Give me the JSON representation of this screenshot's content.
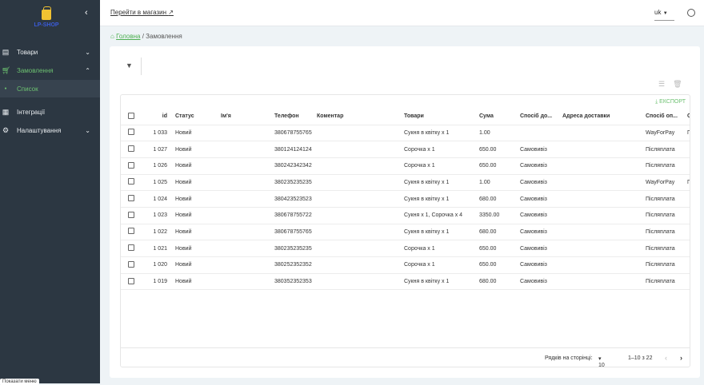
{
  "sidebar": {
    "logo": "LP-SHOP",
    "items": [
      {
        "label": "Товари",
        "icon": "archive-icon"
      },
      {
        "label": "Замовлення",
        "icon": "cart-icon"
      },
      {
        "label": "Список",
        "icon": "dot-icon"
      },
      {
        "label": "Інтеграції",
        "icon": "grid-icon"
      },
      {
        "label": "Налаштування",
        "icon": "gear-icon"
      }
    ],
    "tooltip": "Показати меню"
  },
  "header": {
    "shop_link": "Перейти в магазин",
    "lang": "uk"
  },
  "breadcrumb": {
    "home": "Головна",
    "current": "Замовлення"
  },
  "table": {
    "export": "ЕКСПОРТ",
    "columns": [
      "id",
      "Статус",
      "Ім'я",
      "Телефон",
      "Коментар",
      "Товари",
      "Сума",
      "Спосіб до...",
      "Адреса доставки",
      "Спосіб оп...",
      "С"
    ],
    "rows": [
      [
        "1 033",
        "Новий",
        "",
        "380678755765",
        "",
        "Сукня в квітку x 1",
        "1.00",
        "",
        "",
        "WayForPay",
        "П"
      ],
      [
        "1 027",
        "Новий",
        "",
        "380124124124",
        "",
        "Сорочка x 1",
        "650.00",
        "Самовивіз",
        "",
        "Післяплата",
        ""
      ],
      [
        "1 026",
        "Новий",
        "",
        "380242342342",
        "",
        "Сорочка x 1",
        "650.00",
        "Самовивіз",
        "",
        "Післяплата",
        ""
      ],
      [
        "1 025",
        "Новий",
        "",
        "380235235235",
        "",
        "Сукня в квітку x 1",
        "1.00",
        "Самовивіз",
        "",
        "WayForPay",
        "П"
      ],
      [
        "1 024",
        "Новий",
        "",
        "380423523523",
        "",
        "Сукня в квітку x 1",
        "680.00",
        "Самовивіз",
        "",
        "Післяплата",
        ""
      ],
      [
        "1 023",
        "Новий",
        "",
        "380678755722",
        "",
        "Сукня x 1, Сорочка x 4",
        "3350.00",
        "Самовивіз",
        "",
        "Післяплата",
        ""
      ],
      [
        "1 022",
        "Новий",
        "",
        "380678755765",
        "",
        "Сукня в квітку x 1",
        "680.00",
        "Самовивіз",
        "",
        "Післяплата",
        ""
      ],
      [
        "1 021",
        "Новий",
        "",
        "380235235235",
        "",
        "Сорочка x 1",
        "650.00",
        "Самовивіз",
        "",
        "Післяплата",
        ""
      ],
      [
        "1 020",
        "Новий",
        "",
        "380252352352",
        "",
        "Сорочка x 1",
        "650.00",
        "Самовивіз",
        "",
        "Післяплата",
        ""
      ],
      [
        "1 019",
        "Новий",
        "",
        "380352352353",
        "",
        "Сукня в квітку x 1",
        "680.00",
        "Самовивіз",
        "",
        "Післяплата",
        ""
      ]
    ]
  },
  "pagination": {
    "rows_label": "Рядків на сторінці:",
    "rows_value": "10",
    "range": "1–10 з 22"
  }
}
